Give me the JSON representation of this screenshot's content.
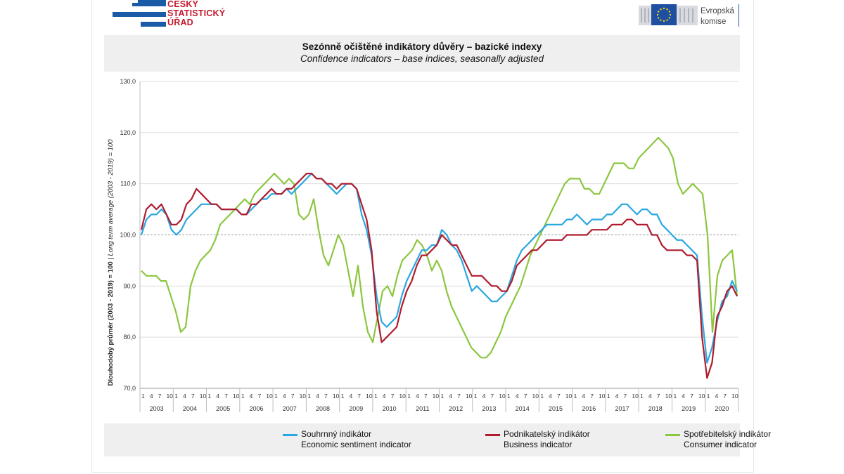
{
  "header": {
    "org_left": "ČESKÝ\nSTATISTICKÝ\nÚŘAD",
    "org_right": "Evropská\nkomise",
    "colors": {
      "csu_blue": "#1a5aa6",
      "csu_red": "#c41a2e",
      "eu_blue": "#1f4fa0",
      "eu_star": "#f2d21b"
    }
  },
  "chart_data": {
    "type": "line",
    "title": "Sezónně očištěné indikátory důvěry – bazické indexy",
    "subtitle": "Confidence indicators – base indices, seasonally adjusted",
    "ylabel_cz": "Dlouhodobý průměr (2003 - 2019) = 100",
    "ylabel_en": "Long term average (2003 - 2019) = 100",
    "ylim": [
      70,
      130
    ],
    "yticks": [
      "70,0",
      "80,0",
      "90,0",
      "100,0",
      "110,0",
      "120,0",
      "130,0"
    ],
    "x_month_labels": [
      "1",
      "4",
      "7",
      "10"
    ],
    "years": [
      "2003",
      "2004",
      "2005",
      "2006",
      "2007",
      "2008",
      "2009",
      "2010",
      "2011",
      "2012",
      "2013",
      "2014",
      "2015",
      "2016",
      "2017",
      "2018",
      "2019",
      "2020"
    ],
    "reference_line": 100,
    "grid": "horizontal",
    "legend_position": "bottom",
    "series": [
      {
        "name": "Souhrnný indikátor",
        "name_en": "Economic sentiment indicator",
        "color": "#2aa7e0",
        "values": [
          100,
          103,
          104,
          104,
          105,
          104,
          101,
          100,
          101,
          103,
          104,
          105,
          106,
          106,
          106,
          106,
          105,
          105,
          105,
          105,
          104,
          104,
          105,
          106,
          107,
          107,
          108,
          108,
          108,
          109,
          108,
          109,
          110,
          111,
          112,
          111,
          111,
          110,
          109,
          108,
          109,
          110,
          110,
          109,
          104,
          101,
          96,
          88,
          83,
          82,
          83,
          84,
          88,
          91,
          93,
          95,
          97,
          97,
          98,
          98,
          101,
          100,
          98,
          97,
          95,
          92,
          89,
          90,
          89,
          88,
          87,
          87,
          88,
          89,
          92,
          95,
          97,
          98,
          99,
          100,
          101,
          102,
          102,
          102,
          102,
          103,
          103,
          104,
          103,
          102,
          103,
          103,
          103,
          104,
          104,
          105,
          106,
          106,
          105,
          104,
          105,
          105,
          104,
          104,
          102,
          101,
          100,
          99,
          99,
          98,
          97,
          96,
          84,
          75,
          78,
          83,
          87,
          88,
          91,
          89
        ]
      },
      {
        "name": "Podnikatelský indikátor",
        "name_en": "Business indicator",
        "color": "#b01c2e",
        "values": [
          101,
          105,
          106,
          105,
          106,
          104,
          102,
          102,
          103,
          106,
          107,
          109,
          108,
          107,
          106,
          106,
          105,
          105,
          105,
          105,
          104,
          104,
          106,
          106,
          107,
          108,
          109,
          108,
          108,
          109,
          109,
          110,
          111,
          112,
          112,
          111,
          111,
          110,
          110,
          109,
          110,
          110,
          110,
          109,
          106,
          103,
          97,
          85,
          79,
          80,
          81,
          82,
          86,
          89,
          91,
          94,
          96,
          96,
          97,
          98,
          100,
          99,
          98,
          98,
          96,
          94,
          92,
          92,
          92,
          91,
          90,
          90,
          89,
          89,
          91,
          94,
          95,
          96,
          97,
          97,
          98,
          99,
          99,
          99,
          99,
          100,
          100,
          100,
          100,
          100,
          101,
          101,
          101,
          101,
          102,
          102,
          102,
          103,
          103,
          102,
          102,
          102,
          100,
          100,
          98,
          97,
          97,
          97,
          97,
          96,
          96,
          95,
          80,
          72,
          75,
          84,
          86,
          89,
          90,
          88
        ]
      },
      {
        "name": "Spotřebitelský indikátor",
        "name_en": "Consumer indicator",
        "color": "#8cc63f",
        "values": [
          93,
          92,
          92,
          92,
          91,
          91,
          88,
          85,
          81,
          82,
          90,
          93,
          95,
          96,
          97,
          99,
          102,
          103,
          104,
          105,
          106,
          107,
          106,
          108,
          109,
          110,
          111,
          112,
          111,
          110,
          111,
          110,
          104,
          103,
          104,
          107,
          101,
          96,
          94,
          97,
          100,
          98,
          93,
          88,
          94,
          86,
          81,
          79,
          84,
          89,
          90,
          88,
          92,
          95,
          96,
          97,
          99,
          98,
          96,
          93,
          95,
          93,
          89,
          86,
          84,
          82,
          80,
          78,
          77,
          76,
          76,
          77,
          79,
          81,
          84,
          86,
          88,
          90,
          93,
          96,
          98,
          100,
          102,
          104,
          106,
          108,
          110,
          111,
          111,
          111,
          109,
          109,
          108,
          108,
          110,
          112,
          114,
          114,
          114,
          113,
          113,
          115,
          116,
          117,
          118,
          119,
          118,
          117,
          115,
          110,
          108,
          109,
          110,
          109,
          108,
          100,
          81,
          92,
          95,
          96,
          97,
          88
        ]
      }
    ]
  }
}
